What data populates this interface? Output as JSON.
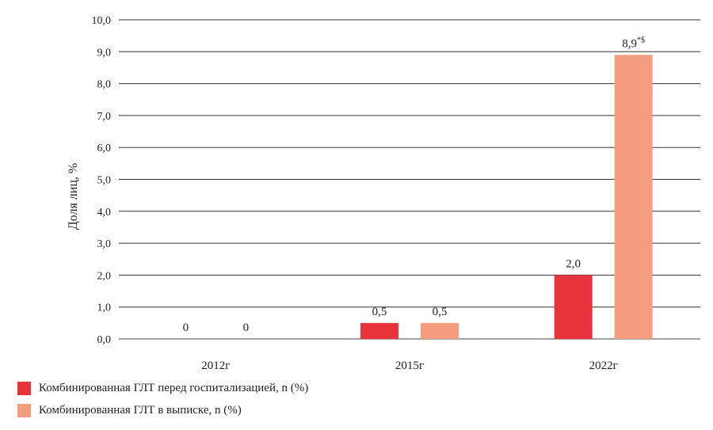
{
  "chart_data": {
    "type": "bar",
    "ylabel": "Доля лиц, %",
    "ylim": [
      0,
      10
    ],
    "yticks": [
      "0,0",
      "1,0",
      "2,0",
      "3,0",
      "4,0",
      "5,0",
      "6,0",
      "7,0",
      "8,0",
      "9,0",
      "10,0"
    ],
    "grid": true,
    "legend_position": "bottom-left",
    "categories": [
      "2012г",
      "2015г",
      "2022г"
    ],
    "series": [
      {
        "name": "Комбинированная ГЛТ перед госпитализацией, n (%)",
        "color": "#e8333a",
        "values": [
          0,
          0.5,
          2.0
        ],
        "labels": [
          "0",
          "0,5",
          "2,0"
        ]
      },
      {
        "name": "Комбинированная ГЛТ в выписке, n (%)",
        "color": "#f59d7f",
        "values": [
          0,
          0.5,
          8.9
        ],
        "labels": [
          "0",
          "0,5",
          "8,9"
        ],
        "annotations": [
          "",
          "",
          "*$"
        ]
      }
    ]
  }
}
